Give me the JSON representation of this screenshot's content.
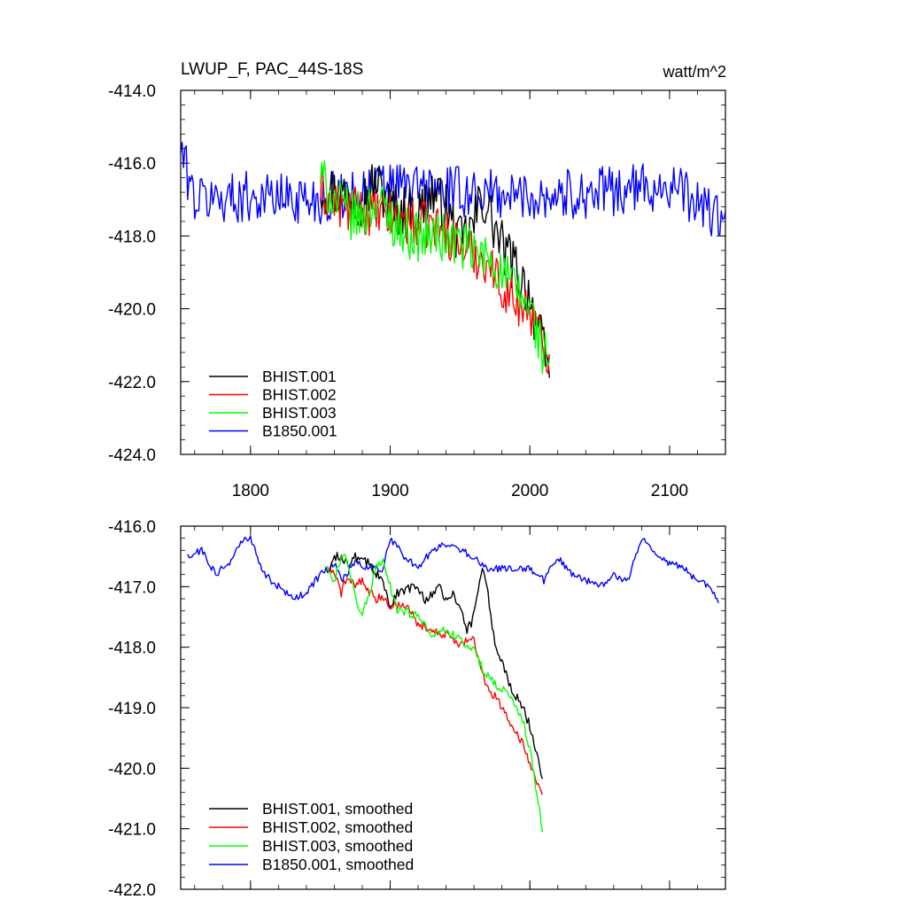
{
  "chart_data": [
    {
      "type": "line",
      "title": "LWUP_F, PAC_44S-18S",
      "units": "watt/m^2",
      "xlabel": "",
      "ylabel": "",
      "xlim": [
        1750,
        2140
      ],
      "ylim": [
        -424.0,
        -414.0
      ],
      "x_ticks": [
        1800,
        1900,
        2000,
        2100
      ],
      "x_tick_labels": [
        "1800",
        "1900",
        "2000",
        "2100"
      ],
      "y_ticks": [
        -414.0,
        -416.0,
        -418.0,
        -420.0,
        -422.0,
        -424.0
      ],
      "y_tick_labels": [
        "-414.0",
        "-416.0",
        "-418.0",
        "-420.0",
        "-422.0",
        "-424.0"
      ],
      "legend_position": "bottom-left",
      "series": [
        {
          "name": "BHIST.001",
          "color": "#000000",
          "x_start": 1850,
          "x_end": 2014,
          "anchors": [
            [
              1850,
              -416.6
            ],
            [
              1860,
              -416.8
            ],
            [
              1870,
              -416.9
            ],
            [
              1880,
              -417.0
            ],
            [
              1890,
              -416.5
            ],
            [
              1900,
              -417.2
            ],
            [
              1910,
              -417.3
            ],
            [
              1920,
              -417.4
            ],
            [
              1930,
              -416.8
            ],
            [
              1940,
              -417.3
            ],
            [
              1950,
              -418.2
            ],
            [
              1960,
              -417.7
            ],
            [
              1965,
              -416.9
            ],
            [
              1970,
              -417.3
            ],
            [
              1980,
              -418.3
            ],
            [
              1990,
              -418.9
            ],
            [
              2000,
              -419.6
            ],
            [
              2005,
              -420.5
            ],
            [
              2010,
              -421.2
            ],
            [
              2014,
              -421.8
            ]
          ],
          "noise": 0.75
        },
        {
          "name": "BHIST.002",
          "color": "#ff0000",
          "x_start": 1850,
          "x_end": 2014,
          "anchors": [
            [
              1850,
              -416.8
            ],
            [
              1860,
              -417.1
            ],
            [
              1870,
              -417.3
            ],
            [
              1880,
              -417.3
            ],
            [
              1890,
              -417.4
            ],
            [
              1900,
              -417.5
            ],
            [
              1910,
              -417.6
            ],
            [
              1920,
              -417.7
            ],
            [
              1930,
              -417.7
            ],
            [
              1940,
              -417.9
            ],
            [
              1950,
              -418.3
            ],
            [
              1960,
              -418.5
            ],
            [
              1970,
              -418.7
            ],
            [
              1980,
              -419.4
            ],
            [
              1990,
              -419.8
            ],
            [
              2000,
              -420.0
            ],
            [
              2005,
              -420.6
            ],
            [
              2010,
              -421.0
            ],
            [
              2014,
              -421.2
            ]
          ],
          "noise": 0.65
        },
        {
          "name": "BHIST.003",
          "color": "#00ff00",
          "x_start": 1850,
          "x_end": 2014,
          "anchors": [
            [
              1850,
              -416.4
            ],
            [
              1860,
              -417.0
            ],
            [
              1870,
              -417.4
            ],
            [
              1880,
              -417.5
            ],
            [
              1890,
              -417.0
            ],
            [
              1900,
              -417.5
            ],
            [
              1910,
              -417.9
            ],
            [
              1920,
              -418.0
            ],
            [
              1930,
              -418.0
            ],
            [
              1940,
              -418.1
            ],
            [
              1950,
              -418.2
            ],
            [
              1960,
              -418.5
            ],
            [
              1970,
              -418.6
            ],
            [
              1980,
              -419.0
            ],
            [
              1990,
              -419.5
            ],
            [
              2000,
              -420.0
            ],
            [
              2005,
              -420.6
            ],
            [
              2010,
              -421.3
            ],
            [
              2014,
              -421.4
            ]
          ],
          "noise": 0.7
        },
        {
          "name": "B1850.001",
          "color": "#0000ff",
          "x_start": 1750,
          "x_end": 2140,
          "anchors": [
            [
              1750,
              -415.6
            ],
            [
              1760,
              -417.0
            ],
            [
              1800,
              -416.9
            ],
            [
              1850,
              -417.0
            ],
            [
              1900,
              -416.6
            ],
            [
              1950,
              -416.8
            ],
            [
              2000,
              -416.9
            ],
            [
              2050,
              -416.8
            ],
            [
              2100,
              -416.6
            ],
            [
              2140,
              -417.6
            ]
          ],
          "noise": 0.7
        }
      ]
    },
    {
      "type": "line",
      "title": "",
      "xlabel": "",
      "ylabel": "",
      "xlim": [
        1750,
        2140
      ],
      "ylim": [
        -422.0,
        -416.0
      ],
      "x_ticks": [
        1800,
        1900,
        2000,
        2100
      ],
      "y_ticks": [
        -416.0,
        -417.0,
        -418.0,
        -419.0,
        -420.0,
        -421.0,
        -422.0
      ],
      "y_tick_labels": [
        "-416.0",
        "-417.0",
        "-418.0",
        "-419.0",
        "-420.0",
        "-421.0",
        "-422.0"
      ],
      "legend_position": "bottom-left",
      "series": [
        {
          "name": "BHIST.001, smoothed",
          "color": "#000000",
          "x_start": 1855,
          "x_end": 2009,
          "anchors": [
            [
              1855,
              -416.8
            ],
            [
              1860,
              -416.5
            ],
            [
              1865,
              -416.5
            ],
            [
              1870,
              -416.6
            ],
            [
              1875,
              -416.5
            ],
            [
              1880,
              -416.6
            ],
            [
              1885,
              -416.6
            ],
            [
              1890,
              -416.8
            ],
            [
              1895,
              -416.9
            ],
            [
              1900,
              -417.3
            ],
            [
              1905,
              -417.1
            ],
            [
              1910,
              -417.1
            ],
            [
              1915,
              -417.0
            ],
            [
              1920,
              -417.0
            ],
            [
              1925,
              -417.2
            ],
            [
              1930,
              -417.1
            ],
            [
              1935,
              -417.0
            ],
            [
              1940,
              -417.2
            ],
            [
              1945,
              -417.1
            ],
            [
              1950,
              -417.4
            ],
            [
              1955,
              -417.7
            ],
            [
              1958,
              -417.6
            ],
            [
              1962,
              -417.1
            ],
            [
              1966,
              -416.7
            ],
            [
              1970,
              -417.1
            ],
            [
              1975,
              -418.0
            ],
            [
              1980,
              -418.2
            ],
            [
              1985,
              -418.6
            ],
            [
              1990,
              -418.8
            ],
            [
              1995,
              -419.0
            ],
            [
              2000,
              -419.3
            ],
            [
              2005,
              -419.8
            ],
            [
              2009,
              -420.2
            ]
          ],
          "noise": 0.08
        },
        {
          "name": "BHIST.002, smoothed",
          "color": "#ff0000",
          "x_start": 1855,
          "x_end": 2009,
          "anchors": [
            [
              1855,
              -416.7
            ],
            [
              1860,
              -416.8
            ],
            [
              1865,
              -417.1
            ],
            [
              1870,
              -416.8
            ],
            [
              1875,
              -417.0
            ],
            [
              1880,
              -416.9
            ],
            [
              1885,
              -417.1
            ],
            [
              1890,
              -417.2
            ],
            [
              1895,
              -417.2
            ],
            [
              1900,
              -417.3
            ],
            [
              1910,
              -417.3
            ],
            [
              1920,
              -417.6
            ],
            [
              1930,
              -417.7
            ],
            [
              1940,
              -417.8
            ],
            [
              1950,
              -418.0
            ],
            [
              1955,
              -417.9
            ],
            [
              1960,
              -417.9
            ],
            [
              1965,
              -418.3
            ],
            [
              1970,
              -418.7
            ],
            [
              1975,
              -418.8
            ],
            [
              1980,
              -419.0
            ],
            [
              1985,
              -419.2
            ],
            [
              1990,
              -419.4
            ],
            [
              1995,
              -419.6
            ],
            [
              2000,
              -419.9
            ],
            [
              2005,
              -420.2
            ],
            [
              2009,
              -420.5
            ]
          ],
          "noise": 0.08
        },
        {
          "name": "BHIST.003, smoothed",
          "color": "#00ff00",
          "x_start": 1855,
          "x_end": 2009,
          "anchors": [
            [
              1855,
              -416.7
            ],
            [
              1860,
              -416.9
            ],
            [
              1865,
              -416.5
            ],
            [
              1870,
              -416.6
            ],
            [
              1875,
              -417.2
            ],
            [
              1880,
              -417.5
            ],
            [
              1885,
              -417.1
            ],
            [
              1890,
              -416.7
            ],
            [
              1895,
              -416.5
            ],
            [
              1900,
              -417.0
            ],
            [
              1905,
              -417.4
            ],
            [
              1910,
              -417.4
            ],
            [
              1920,
              -417.5
            ],
            [
              1930,
              -417.8
            ],
            [
              1940,
              -417.7
            ],
            [
              1950,
              -417.9
            ],
            [
              1955,
              -418.0
            ],
            [
              1960,
              -418.0
            ],
            [
              1965,
              -418.3
            ],
            [
              1970,
              -418.5
            ],
            [
              1975,
              -418.6
            ],
            [
              1980,
              -418.7
            ],
            [
              1985,
              -418.8
            ],
            [
              1990,
              -419.0
            ],
            [
              1995,
              -419.2
            ],
            [
              2000,
              -419.7
            ],
            [
              2005,
              -420.4
            ],
            [
              2009,
              -421.0
            ]
          ],
          "noise": 0.08
        },
        {
          "name": "B1850.001, smoothed",
          "color": "#0000ff",
          "x_start": 1755,
          "x_end": 2135,
          "anchors": [
            [
              1755,
              -416.5
            ],
            [
              1765,
              -416.4
            ],
            [
              1775,
              -416.8
            ],
            [
              1785,
              -416.6
            ],
            [
              1795,
              -416.2
            ],
            [
              1800,
              -416.2
            ],
            [
              1810,
              -416.8
            ],
            [
              1820,
              -417.0
            ],
            [
              1830,
              -417.2
            ],
            [
              1840,
              -417.1
            ],
            [
              1850,
              -416.8
            ],
            [
              1860,
              -416.6
            ],
            [
              1865,
              -416.9
            ],
            [
              1875,
              -416.6
            ],
            [
              1885,
              -416.7
            ],
            [
              1895,
              -416.7
            ],
            [
              1900,
              -416.2
            ],
            [
              1910,
              -416.5
            ],
            [
              1920,
              -416.7
            ],
            [
              1930,
              -416.4
            ],
            [
              1940,
              -416.3
            ],
            [
              1950,
              -416.4
            ],
            [
              1960,
              -416.5
            ],
            [
              1970,
              -416.7
            ],
            [
              1980,
              -416.7
            ],
            [
              1990,
              -416.7
            ],
            [
              2000,
              -416.7
            ],
            [
              2010,
              -416.9
            ],
            [
              2020,
              -416.5
            ],
            [
              2030,
              -416.8
            ],
            [
              2040,
              -416.9
            ],
            [
              2050,
              -417.0
            ],
            [
              2060,
              -416.8
            ],
            [
              2070,
              -416.9
            ],
            [
              2080,
              -416.2
            ],
            [
              2090,
              -416.5
            ],
            [
              2100,
              -416.6
            ],
            [
              2110,
              -416.7
            ],
            [
              2120,
              -416.9
            ],
            [
              2130,
              -417.0
            ],
            [
              2135,
              -417.3
            ]
          ],
          "noise": 0.06
        }
      ]
    }
  ]
}
